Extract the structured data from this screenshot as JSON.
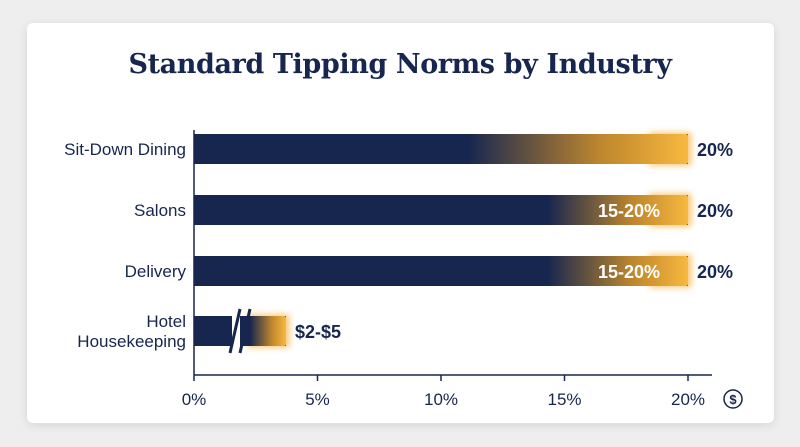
{
  "chart_data": {
    "type": "bar",
    "orientation": "horizontal",
    "title": "Standard Tipping Norms by Industry",
    "categories": [
      "Sit-Down Dining",
      "Salons",
      "Delivery",
      "Hotel Housekeeping"
    ],
    "category_lines": [
      [
        "Sit-Down Dining"
      ],
      [
        "Salons"
      ],
      [
        "Delivery"
      ],
      [
        "Hotel",
        "Housekeeping"
      ]
    ],
    "values": [
      20,
      20,
      20,
      null
    ],
    "range_min": [
      null,
      15,
      15,
      null
    ],
    "end_labels": [
      "20%",
      "20%",
      "20%",
      "$2-$5"
    ],
    "inner_labels": [
      "",
      "15-20%",
      "15-20%",
      ""
    ],
    "axis_break_on": [
      "Hotel Housekeeping"
    ],
    "xlim": [
      0,
      20
    ],
    "x_ticks": [
      0,
      5,
      10,
      15,
      20
    ],
    "x_tick_labels": [
      "0%",
      "5%",
      "10%",
      "15%",
      "20%"
    ],
    "x_axis_icon": "dollar-circle-icon",
    "colors": {
      "bar": "#17264f",
      "highlight": "#f5a623",
      "text": "#17264f",
      "axis": "#17264f"
    }
  }
}
